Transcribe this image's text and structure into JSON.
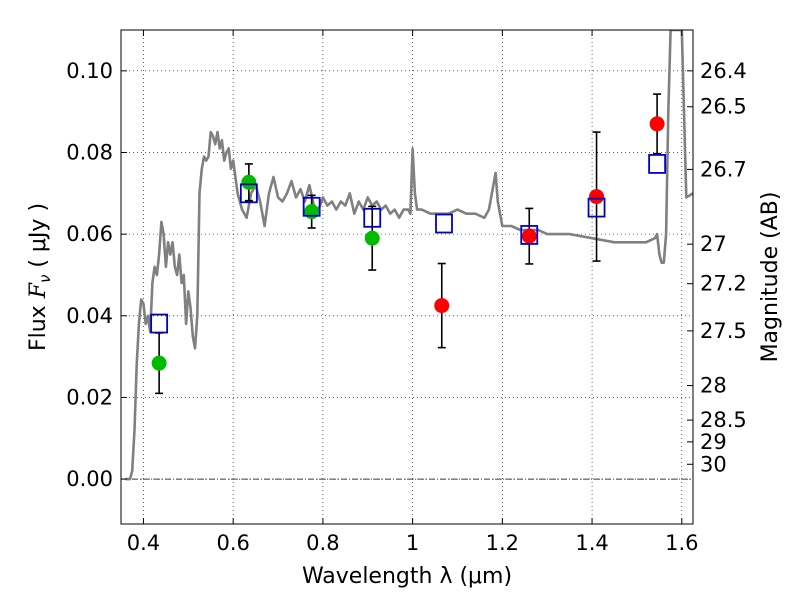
{
  "chart_data": {
    "type": "scatter",
    "xlabel": "Wavelength  λ (μm)",
    "ylabel_left": "Flux  F_ν  ( μJy )",
    "ylabel_left_parts": {
      "main": "Flux ",
      "var": "F",
      "sub": "ν",
      "open": "  ( ",
      "unit": "μJy",
      "close": " )"
    },
    "ylabel_right": "Magnitude (AB)",
    "xlim": [
      0.35,
      1.625
    ],
    "ylim": [
      -0.011,
      0.11
    ],
    "grid": true,
    "x_ticks": [
      {
        "value": 0.4,
        "label": "0.4"
      },
      {
        "value": 0.6,
        "label": "0.6"
      },
      {
        "value": 0.8,
        "label": "0.8"
      },
      {
        "value": 1.0,
        "label": "1"
      },
      {
        "value": 1.2,
        "label": "1.2"
      },
      {
        "value": 1.4,
        "label": "1.4"
      },
      {
        "value": 1.6,
        "label": "1.6"
      }
    ],
    "y_ticks": [
      {
        "value": 0.0,
        "label": "0.00"
      },
      {
        "value": 0.02,
        "label": "0.02"
      },
      {
        "value": 0.04,
        "label": "0.04"
      },
      {
        "value": 0.06,
        "label": "0.06"
      },
      {
        "value": 0.08,
        "label": "0.08"
      },
      {
        "value": 0.1,
        "label": "0.10"
      }
    ],
    "mag_ticks": [
      {
        "value": 26.4,
        "label": "26.4"
      },
      {
        "value": 26.5,
        "label": "26.5"
      },
      {
        "value": 26.7,
        "label": "26.7"
      },
      {
        "value": 27,
        "label": "27"
      },
      {
        "value": 27.2,
        "label": "27.2"
      },
      {
        "value": 27.5,
        "label": "27.5"
      },
      {
        "value": 28,
        "label": "28"
      },
      {
        "value": 28.5,
        "label": "28.5"
      },
      {
        "value": 29,
        "label": "29"
      },
      {
        "value": 30,
        "label": "30"
      }
    ],
    "model_spectrum": {
      "color": "#808080",
      "x": [
        0.36,
        0.37,
        0.375,
        0.38,
        0.385,
        0.39,
        0.395,
        0.4,
        0.405,
        0.41,
        0.415,
        0.42,
        0.425,
        0.43,
        0.435,
        0.44,
        0.445,
        0.45,
        0.455,
        0.46,
        0.465,
        0.47,
        0.475,
        0.48,
        0.485,
        0.49,
        0.495,
        0.5,
        0.505,
        0.51,
        0.515,
        0.52,
        0.525,
        0.53,
        0.535,
        0.54,
        0.545,
        0.55,
        0.555,
        0.56,
        0.565,
        0.57,
        0.575,
        0.58,
        0.585,
        0.59,
        0.595,
        0.6,
        0.605,
        0.61,
        0.62,
        0.63,
        0.64,
        0.65,
        0.66,
        0.67,
        0.68,
        0.69,
        0.7,
        0.71,
        0.72,
        0.73,
        0.74,
        0.75,
        0.76,
        0.77,
        0.78,
        0.79,
        0.8,
        0.81,
        0.82,
        0.83,
        0.84,
        0.85,
        0.86,
        0.87,
        0.88,
        0.89,
        0.9,
        0.91,
        0.92,
        0.93,
        0.94,
        0.95,
        0.96,
        0.97,
        0.98,
        0.99,
        0.995,
        1.0,
        1.005,
        1.01,
        1.02,
        1.04,
        1.06,
        1.08,
        1.1,
        1.12,
        1.14,
        1.16,
        1.17,
        1.18,
        1.185,
        1.19,
        1.2,
        1.22,
        1.24,
        1.26,
        1.28,
        1.3,
        1.35,
        1.4,
        1.45,
        1.5,
        1.52,
        1.54,
        1.545,
        1.55,
        1.555,
        1.56,
        1.565,
        1.57,
        1.575,
        1.58,
        1.59,
        1.6,
        1.61,
        1.625
      ],
      "y": [
        0.0,
        0.0,
        0.002,
        0.012,
        0.028,
        0.038,
        0.044,
        0.043,
        0.038,
        0.04,
        0.036,
        0.048,
        0.052,
        0.05,
        0.055,
        0.063,
        0.06,
        0.052,
        0.058,
        0.055,
        0.058,
        0.052,
        0.05,
        0.055,
        0.048,
        0.05,
        0.038,
        0.046,
        0.042,
        0.035,
        0.032,
        0.04,
        0.07,
        0.076,
        0.079,
        0.078,
        0.079,
        0.085,
        0.084,
        0.082,
        0.085,
        0.081,
        0.083,
        0.078,
        0.08,
        0.081,
        0.076,
        0.078,
        0.074,
        0.07,
        0.066,
        0.064,
        0.07,
        0.072,
        0.068,
        0.062,
        0.07,
        0.074,
        0.069,
        0.068,
        0.07,
        0.073,
        0.069,
        0.071,
        0.068,
        0.072,
        0.067,
        0.066,
        0.069,
        0.067,
        0.068,
        0.066,
        0.068,
        0.067,
        0.07,
        0.065,
        0.068,
        0.066,
        0.069,
        0.067,
        0.068,
        0.066,
        0.067,
        0.065,
        0.066,
        0.064,
        0.066,
        0.066,
        0.065,
        0.081,
        0.07,
        0.066,
        0.066,
        0.065,
        0.065,
        0.065,
        0.066,
        0.065,
        0.065,
        0.064,
        0.066,
        0.072,
        0.075,
        0.068,
        0.062,
        0.062,
        0.061,
        0.061,
        0.061,
        0.06,
        0.06,
        0.059,
        0.058,
        0.058,
        0.058,
        0.059,
        0.06,
        0.055,
        0.053,
        0.053,
        0.06,
        0.09,
        0.11,
        0.11,
        0.11,
        0.11,
        0.069,
        0.07
      ]
    },
    "series": [
      {
        "name": "green points",
        "color": "#00bb00",
        "marker": "circle",
        "x": [
          0.435,
          0.635,
          0.775,
          0.91
        ],
        "y": [
          0.0284,
          0.0727,
          0.0655,
          0.059
        ],
        "err": [
          0.0074,
          0.0045,
          0.004,
          0.0078
        ]
      },
      {
        "name": "red points",
        "color": "#ff0000",
        "marker": "circle",
        "x": [
          1.065,
          1.26,
          1.41,
          1.545
        ],
        "y": [
          0.0425,
          0.0595,
          0.0692,
          0.087
        ],
        "err": [
          0.0103,
          0.0068,
          0.0158,
          0.0073
        ]
      },
      {
        "name": "blue squares",
        "color": "#0000cc",
        "marker": "square",
        "x": [
          0.435,
          0.635,
          0.775,
          0.91,
          1.07,
          1.26,
          1.41,
          1.545
        ],
        "y": [
          0.0381,
          0.07,
          0.0667,
          0.064,
          0.0626,
          0.0598,
          0.0665,
          0.0772
        ]
      }
    ]
  }
}
